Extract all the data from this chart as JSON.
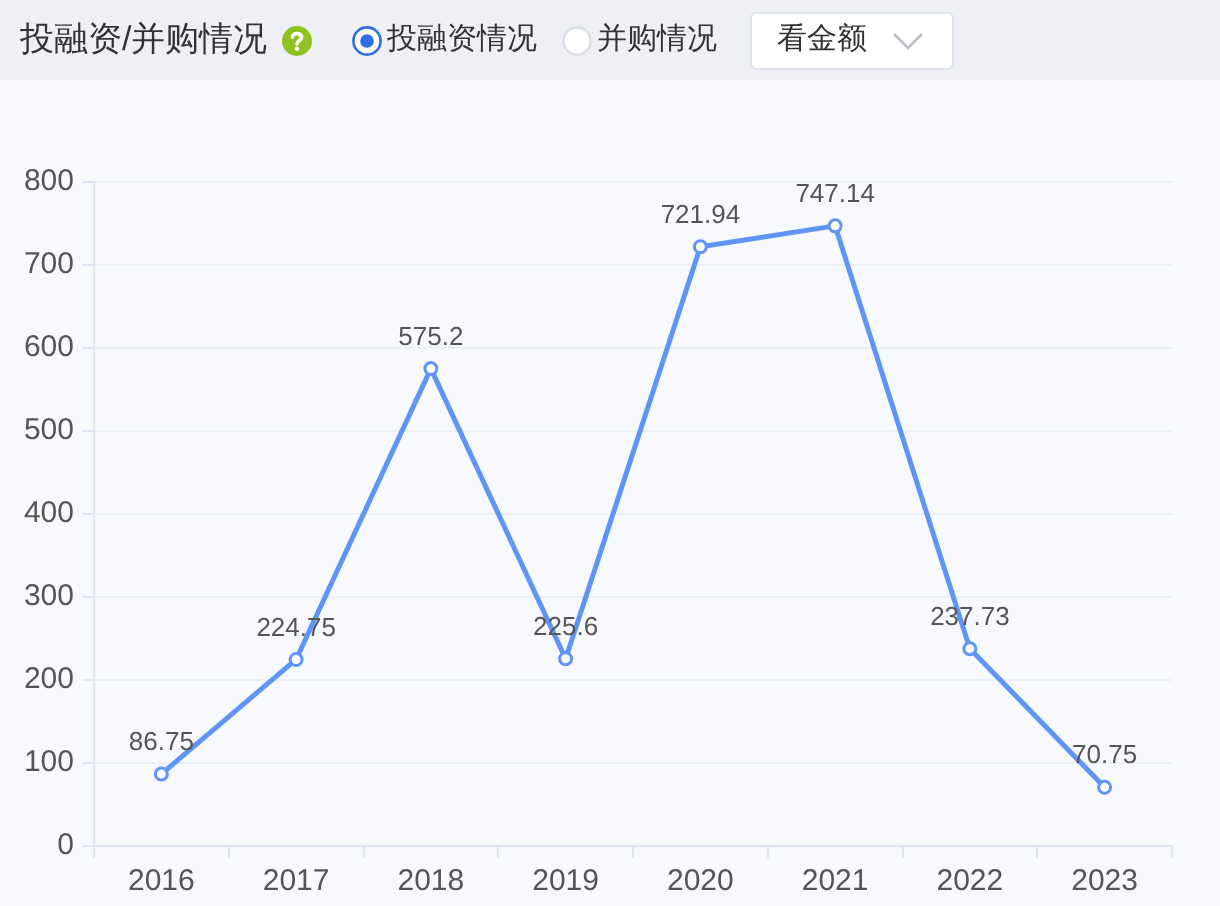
{
  "chart_data": {
    "type": "line",
    "title": "投融资/并购情况",
    "annotations": [
      "投融资情况",
      "并购情况",
      "看金额"
    ],
    "categories": [
      "2016",
      "2017",
      "2018",
      "2019",
      "2020",
      "2021",
      "2022",
      "2023"
    ],
    "values": [
      86.75,
      224.75,
      575.2,
      225.6,
      721.94,
      747.14,
      237.73,
      70.75
    ],
    "color": "#5f95f7",
    "ylim": [
      0,
      800
    ],
    "yticks": [
      0,
      100,
      200,
      300,
      400,
      500,
      600,
      700,
      800
    ],
    "grid": "y",
    "marker": "circle",
    "line_style": "solid",
    "data_labels": true
  }
}
